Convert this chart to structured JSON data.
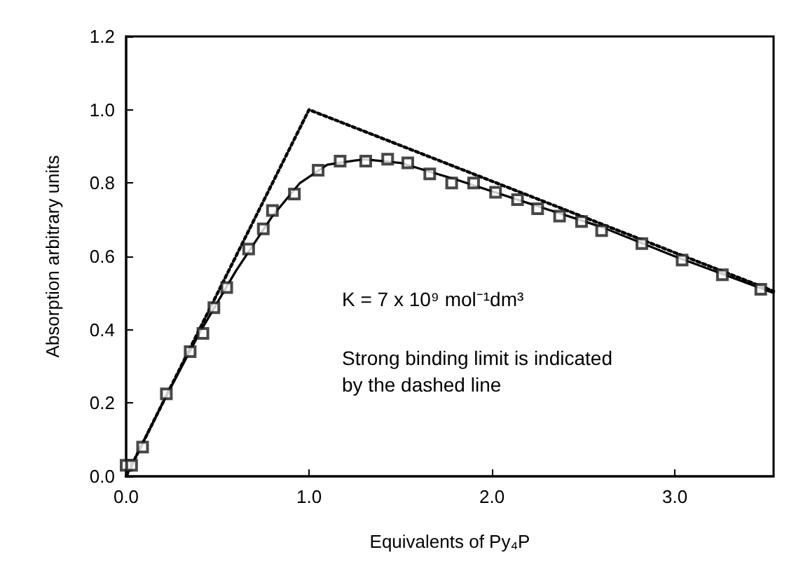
{
  "chart_data": {
    "type": "scatter",
    "xlabel": "Equivalents of Py₄P",
    "ylabel": "Absorption arbitrary units",
    "annotations": [
      "K = 7 x 10⁹ mol⁻¹dm³",
      "Strong binding limit is indicated\nby the dashed line"
    ],
    "xlim": [
      0,
      3.54
    ],
    "ylim": [
      0,
      1.2
    ],
    "xticks": [
      {
        "value": 0,
        "label": "0.0"
      },
      {
        "value": 1,
        "label": "1.0"
      },
      {
        "value": 2,
        "label": "2.0"
      },
      {
        "value": 3,
        "label": "3.0"
      }
    ],
    "yticks": [
      {
        "value": 0,
        "label": "0.0"
      },
      {
        "value": 0.2,
        "label": "0.2"
      },
      {
        "value": 0.4,
        "label": "0.4"
      },
      {
        "value": 0.6,
        "label": "0.6"
      },
      {
        "value": 0.8,
        "label": "0.8"
      },
      {
        "value": 1,
        "label": "1.0"
      },
      {
        "value": 1.2,
        "label": "1.2"
      }
    ],
    "grid": false,
    "marker": "square",
    "series": [
      {
        "color": "#1a1a1a",
        "x": [
          0.0,
          0.03,
          0.09,
          0.22,
          0.35,
          0.42,
          0.48,
          0.55,
          0.67,
          0.75,
          0.8,
          0.92,
          1.05,
          1.17,
          1.31,
          1.43,
          1.54,
          1.66,
          1.78,
          1.9,
          2.02,
          2.14,
          2.25,
          2.37,
          2.49,
          2.6,
          2.82,
          3.04,
          3.26,
          3.47
        ],
        "values": [
          0.03,
          0.03,
          0.08,
          0.225,
          0.34,
          0.39,
          0.46,
          0.515,
          0.62,
          0.675,
          0.725,
          0.77,
          0.835,
          0.86,
          0.86,
          0.865,
          0.855,
          0.825,
          0.8,
          0.8,
          0.775,
          0.755,
          0.73,
          0.71,
          0.695,
          0.67,
          0.635,
          0.59,
          0.55,
          0.51
        ]
      },
      {
        "type": "line",
        "color": "#000000",
        "line_style": "solid",
        "marker": "none",
        "x": [
          0,
          0.2,
          0.4,
          0.6,
          0.8,
          0.95,
          1.1,
          1.3,
          1.5,
          1.8,
          2.2,
          2.6,
          3.0,
          3.54
        ],
        "values": [
          0,
          0.2,
          0.39,
          0.56,
          0.71,
          0.8,
          0.85,
          0.865,
          0.855,
          0.81,
          0.745,
          0.68,
          0.6,
          0.5
        ]
      },
      {
        "type": "line",
        "color": "#000000",
        "line_style": "dotted",
        "marker": "none",
        "x": [
          0,
          1,
          3.54
        ],
        "values": [
          0,
          1,
          0.505
        ]
      }
    ]
  }
}
